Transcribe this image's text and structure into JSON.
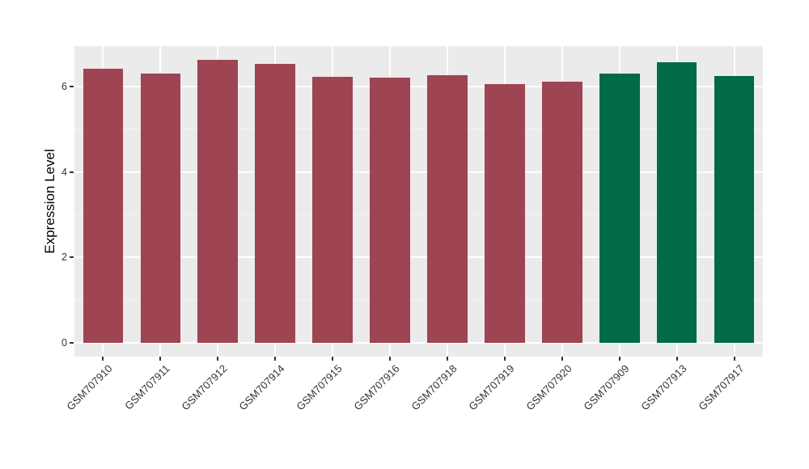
{
  "chart_data": {
    "type": "bar",
    "title": "",
    "xlabel": "",
    "ylabel": "Expression Level",
    "categories": [
      "GSM707910",
      "GSM707911",
      "GSM707912",
      "GSM707914",
      "GSM707915",
      "GSM707916",
      "GSM707918",
      "GSM707919",
      "GSM707920",
      "GSM707909",
      "GSM707913",
      "GSM707917"
    ],
    "values": [
      6.41,
      6.31,
      6.62,
      6.54,
      6.23,
      6.22,
      6.27,
      6.06,
      6.12,
      6.3,
      6.58,
      6.25
    ],
    "bar_colors": [
      "#9E4452",
      "#9E4452",
      "#9E4452",
      "#9E4452",
      "#9E4452",
      "#9E4452",
      "#9E4452",
      "#9E4452",
      "#9E4452",
      "#006A49",
      "#006A49",
      "#006A49"
    ],
    "group_colors": {
      "left_group": "#9E4452",
      "right_group": "#006A49"
    },
    "yticks": [
      0,
      2,
      4,
      6
    ],
    "yticks_minor": [
      1,
      3,
      5,
      7
    ],
    "ylim": [
      -0.33,
      6.95
    ],
    "x_tick_rotation": 45,
    "bar_width_frac": 0.7,
    "grid": true,
    "legend": "none",
    "panel_background": "#EBEBEB",
    "grid_major_color": "#FFFFFF",
    "grid_minor_color": "#F5F5F5",
    "tick_label_color": "#333333",
    "tick_mark_color": "#333333",
    "axis_title_color": "#000000"
  }
}
